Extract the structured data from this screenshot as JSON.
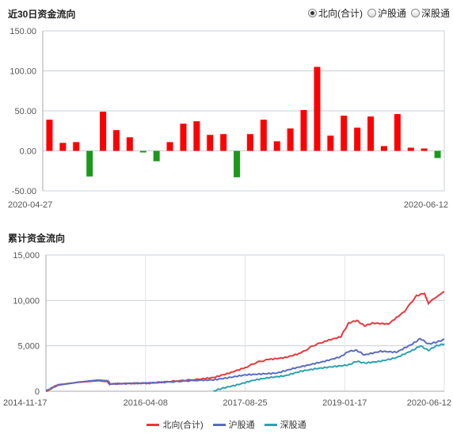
{
  "top": {
    "title": "近30日资金流向",
    "options": [
      {
        "label": "北向(合计)",
        "selected": true
      },
      {
        "label": "沪股通",
        "selected": false
      },
      {
        "label": "深股通",
        "selected": false
      }
    ]
  },
  "bottom": {
    "title": "累计资金流向"
  },
  "colors": {
    "up": "#ff0000",
    "down": "#1a9a1a",
    "north": "#e8373d",
    "sh": "#5b6bc0",
    "sz": "#2ba2b0"
  },
  "chart_data": [
    {
      "type": "bar",
      "title": "近30日资金流向",
      "ylim": [
        -50,
        150
      ],
      "yticks": [
        "150.00",
        "100.00",
        "50.00",
        "0.00",
        "-50.00"
      ],
      "xticks": [
        "2020-04-27",
        "2020-06-12"
      ],
      "values": [
        39,
        10,
        11,
        -32,
        49,
        26,
        17,
        -2,
        -13,
        11,
        34,
        37,
        20,
        21,
        -33,
        21,
        39,
        12,
        28,
        51,
        105,
        19,
        44,
        29,
        43,
        6,
        46,
        4,
        3,
        -9
      ],
      "grid": true
    },
    {
      "type": "line",
      "title": "累计资金流向",
      "ylim": [
        0,
        15000
      ],
      "yticks": [
        "15,000",
        "10,000",
        "5,000",
        "0"
      ],
      "xticks": [
        "2014-11-17",
        "2016-04-08",
        "2017-08-25",
        "2019-01-17",
        "2020-06-12"
      ],
      "series": [
        {
          "name": "北向(合计)",
          "points": [
            [
              0,
              0
            ],
            [
              0.03,
              700
            ],
            [
              0.08,
              1000
            ],
            [
              0.13,
              1200
            ],
            [
              0.155,
              1100
            ],
            [
              0.16,
              800
            ],
            [
              0.2,
              850
            ],
            [
              0.26,
              900
            ],
            [
              0.32,
              1100
            ],
            [
              0.38,
              1300
            ],
            [
              0.42,
              1500
            ],
            [
              0.46,
              2000
            ],
            [
              0.5,
              2600
            ],
            [
              0.53,
              3200
            ],
            [
              0.56,
              3500
            ],
            [
              0.6,
              3700
            ],
            [
              0.64,
              4200
            ],
            [
              0.67,
              5000
            ],
            [
              0.7,
              5500
            ],
            [
              0.74,
              6000
            ],
            [
              0.76,
              7500
            ],
            [
              0.78,
              7800
            ],
            [
              0.8,
              7200
            ],
            [
              0.82,
              7500
            ],
            [
              0.86,
              7400
            ],
            [
              0.9,
              8800
            ],
            [
              0.93,
              10500
            ],
            [
              0.95,
              10800
            ],
            [
              0.96,
              9700
            ],
            [
              0.975,
              10200
            ],
            [
              1.0,
              11000
            ]
          ]
        },
        {
          "name": "沪股通",
          "points": [
            [
              0,
              0
            ],
            [
              0.03,
              700
            ],
            [
              0.08,
              1000
            ],
            [
              0.13,
              1200
            ],
            [
              0.155,
              1100
            ],
            [
              0.16,
              800
            ],
            [
              0.2,
              850
            ],
            [
              0.26,
              900
            ],
            [
              0.32,
              1050
            ],
            [
              0.38,
              1200
            ],
            [
              0.42,
              1250
            ],
            [
              0.46,
              1500
            ],
            [
              0.5,
              1800
            ],
            [
              0.54,
              1900
            ],
            [
              0.58,
              2000
            ],
            [
              0.62,
              2500
            ],
            [
              0.66,
              2900
            ],
            [
              0.7,
              3300
            ],
            [
              0.74,
              3800
            ],
            [
              0.76,
              4400
            ],
            [
              0.78,
              4500
            ],
            [
              0.8,
              4000
            ],
            [
              0.84,
              4400
            ],
            [
              0.88,
              4300
            ],
            [
              0.92,
              5200
            ],
            [
              0.94,
              5800
            ],
            [
              0.96,
              5200
            ],
            [
              0.98,
              5400
            ],
            [
              1.0,
              5700
            ]
          ]
        },
        {
          "name": "深股通",
          "points": [
            [
              0.42,
              0
            ],
            [
              0.44,
              300
            ],
            [
              0.48,
              700
            ],
            [
              0.52,
              1200
            ],
            [
              0.56,
              1500
            ],
            [
              0.6,
              1700
            ],
            [
              0.64,
              2200
            ],
            [
              0.68,
              2500
            ],
            [
              0.72,
              2700
            ],
            [
              0.76,
              2900
            ],
            [
              0.78,
              3300
            ],
            [
              0.8,
              3100
            ],
            [
              0.84,
              3300
            ],
            [
              0.88,
              3700
            ],
            [
              0.92,
              4500
            ],
            [
              0.94,
              5000
            ],
            [
              0.96,
              4500
            ],
            [
              0.98,
              5000
            ],
            [
              1.0,
              5200
            ]
          ]
        }
      ],
      "grid": true
    }
  ]
}
